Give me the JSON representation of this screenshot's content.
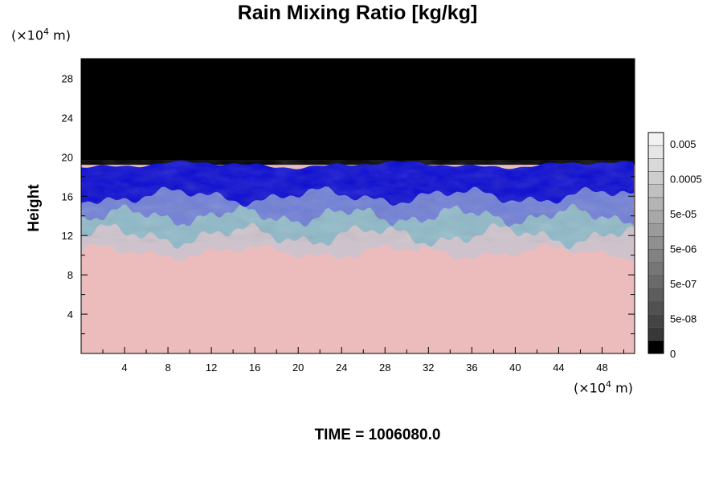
{
  "chart_data": {
    "type": "heatmap",
    "title": "Rain Mixing Ratio [kg/kg]",
    "ylabel": "Height",
    "xlabel": "",
    "y_unit": {
      "prefix": "(×10",
      "exp": "4",
      "suffix": " m)"
    },
    "x_unit": {
      "prefix": "(×10",
      "exp": "4",
      "suffix": " m)"
    },
    "xlim": [
      0,
      51
    ],
    "ylim": [
      0,
      30
    ],
    "x_ticks": [
      4,
      8,
      12,
      16,
      20,
      24,
      28,
      32,
      36,
      40,
      44,
      48
    ],
    "y_ticks": [
      4,
      8,
      12,
      16,
      20,
      24,
      28
    ],
    "field_layers": {
      "top_value_color": "#000000",
      "upper_band_color": "#0a0ad2",
      "mid_band_color": "#6f7fd6",
      "transition_color": "#8fb9c8",
      "lower_value_color": "#ecbcbc",
      "upper_band_top": 19.2,
      "upper_band_bottom": 16,
      "transition_bottom": 12,
      "pink_top": 10.3
    },
    "colorbar": {
      "labels": [
        "0.005",
        "0.0005",
        "5e-05",
        "5e-06",
        "5e-07",
        "5e-08",
        "0"
      ],
      "num_levels": 17,
      "color_bottom": "#000000",
      "color_top": "#f2f2f2"
    },
    "time_label": "TIME = 1006080.0"
  }
}
